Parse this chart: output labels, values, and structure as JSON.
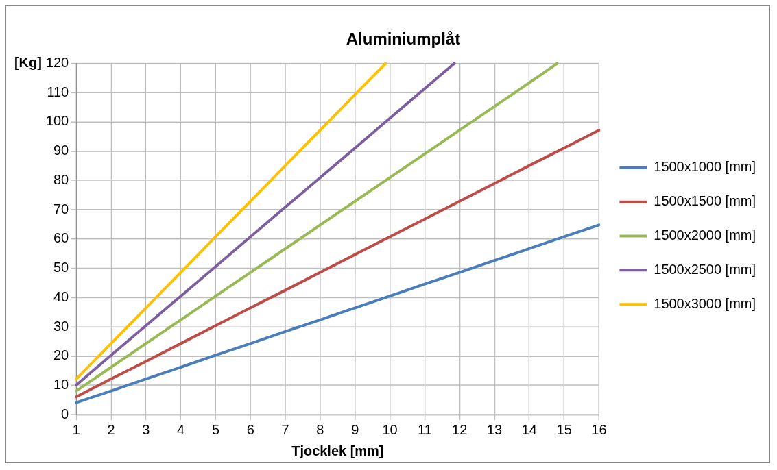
{
  "chart_data": {
    "type": "line",
    "title": "Aluminiumplåt",
    "xlabel": "Tjocklek [mm]",
    "ylabel": "[Kg]",
    "xlim": [
      1,
      16
    ],
    "xticks": [
      1,
      2,
      3,
      4,
      5,
      6,
      7,
      8,
      9,
      10,
      11,
      12,
      13,
      14,
      15,
      16
    ],
    "ylim": [
      0,
      120
    ],
    "yticks": [
      0,
      10,
      20,
      30,
      40,
      50,
      60,
      70,
      80,
      90,
      100,
      110,
      120
    ],
    "grid": true,
    "legend": "right",
    "marker": "none",
    "line_style": "solid",
    "series": [
      {
        "name": "1500x1000 [mm]",
        "color": "#4a7ebb",
        "x": [
          1,
          2,
          3,
          4,
          5,
          6,
          7,
          8,
          9,
          10,
          11,
          12,
          13,
          14,
          15,
          16
        ],
        "values": [
          4.1,
          8.1,
          12.2,
          16.2,
          20.3,
          24.3,
          28.4,
          32.4,
          36.5,
          40.5,
          44.6,
          48.6,
          52.7,
          56.7,
          60.8,
          64.8
        ]
      },
      {
        "name": "1500x1500 [mm]",
        "color": "#be4b48",
        "x": [
          1,
          2,
          3,
          4,
          5,
          6,
          7,
          8,
          9,
          10,
          11,
          12,
          13,
          14,
          15,
          16
        ],
        "values": [
          6.1,
          12.2,
          18.2,
          24.3,
          30.4,
          36.5,
          42.5,
          48.6,
          54.7,
          60.8,
          66.8,
          72.9,
          79.0,
          85.1,
          91.1,
          97.2
        ]
      },
      {
        "name": "1500x2000 [mm]",
        "color": "#98b954",
        "x": [
          1,
          2,
          3,
          4,
          5,
          6,
          7,
          8,
          9,
          10,
          11,
          12,
          13,
          14,
          14.8
        ],
        "values": [
          8.1,
          16.2,
          24.3,
          32.4,
          40.5,
          48.6,
          56.7,
          64.8,
          72.9,
          81.0,
          89.1,
          97.2,
          105.3,
          113.4,
          120
        ]
      },
      {
        "name": "1500x2500 [mm]",
        "color": "#7d5fa0",
        "x": [
          1,
          2,
          3,
          4,
          5,
          6,
          7,
          8,
          9,
          10,
          11,
          11.85
        ],
        "values": [
          10.1,
          20.3,
          30.4,
          40.5,
          50.6,
          60.8,
          70.9,
          81.0,
          91.1,
          101.3,
          111.4,
          120
        ]
      },
      {
        "name": "1500x3000 [mm]",
        "color": "#ffc000",
        "x": [
          1,
          2,
          3,
          4,
          5,
          6,
          7,
          8,
          9,
          9.88
        ],
        "values": [
          12.2,
          24.3,
          36.5,
          48.6,
          60.8,
          72.9,
          85.1,
          97.2,
          109.4,
          120
        ]
      }
    ]
  }
}
